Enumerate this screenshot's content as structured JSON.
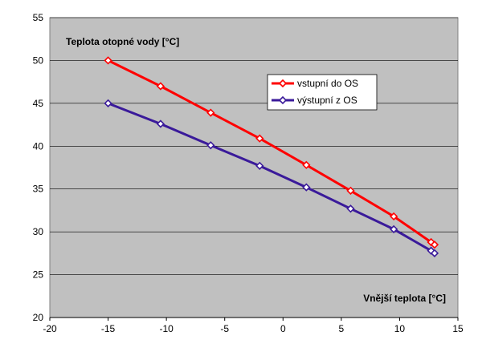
{
  "chart_data": {
    "type": "line",
    "title": "",
    "xlabel": "Vnější teplota [°C]",
    "ylabel": "Teplota otopné vody [°C]",
    "xlim": [
      -20,
      15
    ],
    "ylim": [
      20,
      55
    ],
    "xticks": [
      "-20",
      "-15",
      "-10",
      "-5",
      "0",
      "5",
      "10",
      "15"
    ],
    "yticks": [
      "20",
      "25",
      "30",
      "35",
      "40",
      "45",
      "50",
      "55"
    ],
    "grid": "horizontal",
    "plot_background": "#c0c0c0",
    "legend_position": "upper-right",
    "series": [
      {
        "name": "vstupní do OS",
        "color": "#ff0000",
        "marker": "diamond-open",
        "x": [
          -15,
          -10.5,
          -6.2,
          -2,
          2,
          5.8,
          9.5,
          12.7,
          13
        ],
        "y": [
          50,
          47,
          43.9,
          40.9,
          37.8,
          34.8,
          31.8,
          28.8,
          28.5
        ]
      },
      {
        "name": "výstupní z OS",
        "color": "#3a1a9a",
        "marker": "diamond-open",
        "x": [
          -15,
          -10.5,
          -6.2,
          -2,
          2,
          5.8,
          9.5,
          12.7,
          13
        ],
        "y": [
          45,
          42.6,
          40.1,
          37.7,
          35.2,
          32.7,
          30.3,
          27.8,
          27.5
        ]
      }
    ]
  }
}
